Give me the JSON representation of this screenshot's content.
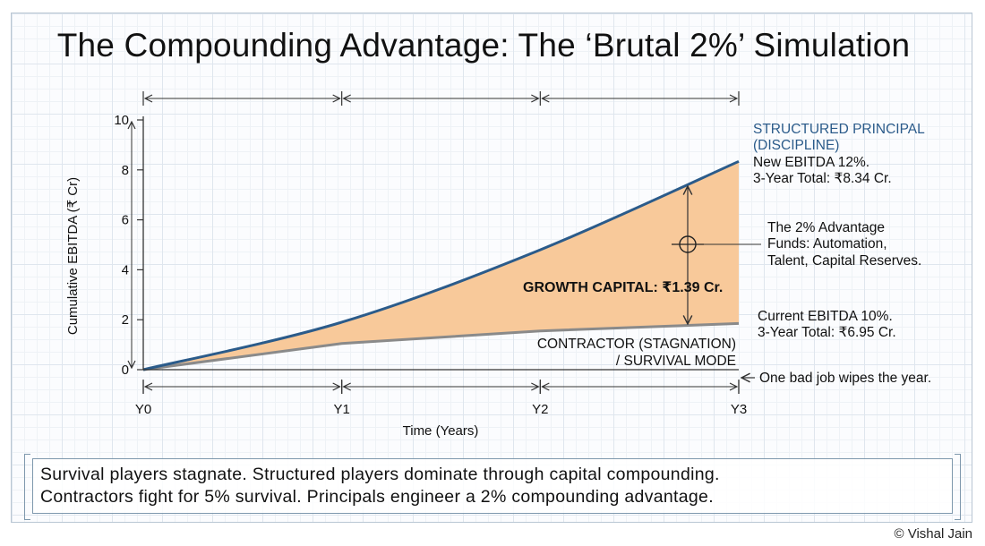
{
  "title": "The Compounding Advantage: The ‘Brutal 2%’ Simulation",
  "chart_data": {
    "type": "area",
    "x": [
      "Y0",
      "Y1",
      "Y2",
      "Y3"
    ],
    "xlabel": "Time (Years)",
    "ylabel": "Cumulative EBITDA (₹ Cr)",
    "ylim": [
      0,
      10
    ],
    "yticks": [
      "0",
      "2",
      "4",
      "6",
      "8",
      "10"
    ],
    "series": [
      {
        "name": "STRUCTURED PRINCIPAL (DISCIPLINE)",
        "values": [
          0,
          1.9,
          4.8,
          8.34
        ],
        "color": "#2b5b8a"
      },
      {
        "name": "CONTRACTOR (STAGNATION) / SURVIVAL MODE",
        "values": [
          0,
          1.05,
          1.55,
          1.85
        ],
        "color": "#8a8a8a"
      }
    ],
    "fill_color": "#f8c99a",
    "annotations": {
      "principal_title_1": "STRUCTURED PRINCIPAL",
      "principal_title_2": "(DISCIPLINE)",
      "principal_detail_1": "New EBITDA 12%.",
      "principal_detail_2": "3-Year Total: ₹8.34 Cr.",
      "advantage_1": "The 2% Advantage",
      "advantage_2": "Funds: Automation,",
      "advantage_3": "Talent, Capital Reserves.",
      "growth_capital": "GROWTH CAPITAL: ₹1.39 Cr.",
      "current_detail_1": "Current EBITDA 10%.",
      "current_detail_2": "3-Year Total: ₹6.95 Cr.",
      "contractor_1": "CONTRACTOR (STAGNATION)",
      "contractor_2": "/ SURVIVAL MODE",
      "bad_job": "One bad job wipes the year."
    },
    "grid": true
  },
  "summary": {
    "line1": "Survival players stagnate. Structured players dominate through capital compounding.",
    "line2": "Contractors fight for 5% survival. Principals engineer a 2% compounding advantage."
  },
  "credit": "© Vishal Jain"
}
